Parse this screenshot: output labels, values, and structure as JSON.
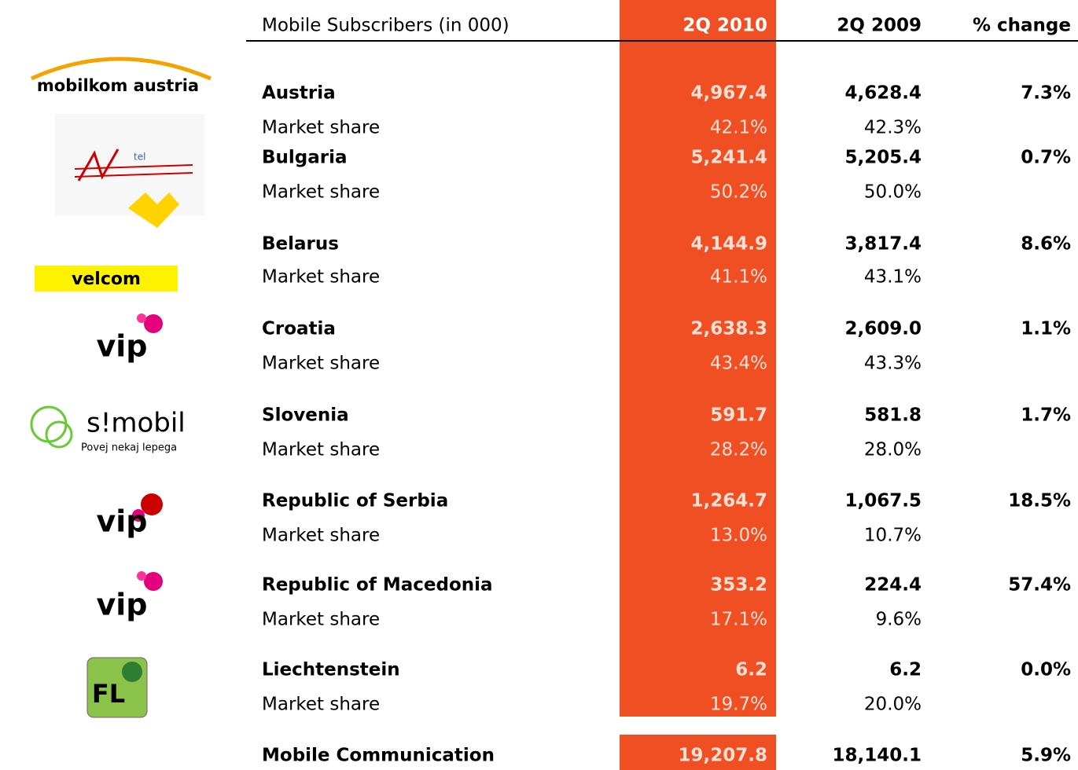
{
  "header": {
    "label": "Mobile Subscribers (in 000)",
    "col1": "2Q 2010",
    "col2": "2Q 2009",
    "col3": "% change"
  },
  "rows": [
    {
      "country": "Austria",
      "v2010": "4,967.4",
      "v2009": "4,628.4",
      "change": "7.3%",
      "share_label": "Market share",
      "share2010": "42.1%",
      "share2009": "42.3%"
    },
    {
      "country": "Bulgaria",
      "v2010": "5,241.4",
      "v2009": "5,205.4",
      "change": "0.7%",
      "share_label": "Market share",
      "share2010": "50.2%",
      "share2009": "50.0%"
    },
    {
      "country": "Belarus",
      "v2010": "4,144.9",
      "v2009": "3,817.4",
      "change": "8.6%",
      "share_label": "Market share",
      "share2010": "41.1%",
      "share2009": "43.1%"
    },
    {
      "country": "Croatia",
      "v2010": "2,638.3",
      "v2009": "2,609.0",
      "change": "1.1%",
      "share_label": "Market share",
      "share2010": "43.4%",
      "share2009": "43.3%"
    },
    {
      "country": "Slovenia",
      "v2010": "591.7",
      "v2009": "581.8",
      "change": "1.7%",
      "share_label": "Market share",
      "share2010": "28.2%",
      "share2009": "28.0%"
    },
    {
      "country": "Republic of Serbia",
      "v2010": "1,264.7",
      "v2009": "1,067.5",
      "change": "18.5%",
      "share_label": "Market share",
      "share2010": "13.0%",
      "share2009": "10.7%"
    },
    {
      "country": "Republic of Macedonia",
      "v2010": "353.2",
      "v2009": "224.4",
      "change": "57.4%",
      "share_label": "Market share",
      "share2010": "17.1%",
      "share2009": "9.6%"
    },
    {
      "country": "Liechtenstein",
      "v2010": "6.2",
      "v2009": "6.2",
      "change": "0.0%",
      "share_label": "Market share",
      "share2010": "19.7%",
      "share2009": "20.0%"
    }
  ],
  "total": {
    "label": "Mobile Communication",
    "v2010": "19,207.8",
    "v2009": "18,140.1",
    "change": "5.9%"
  },
  "logos": {
    "mobilkom": "mobilkom austria",
    "mtel": "tel",
    "velcom": "velcom",
    "vip": "vip",
    "simobil": "s!mobil",
    "simobil_tag": "Povej nekaj lepega",
    "fl": "FL"
  }
}
